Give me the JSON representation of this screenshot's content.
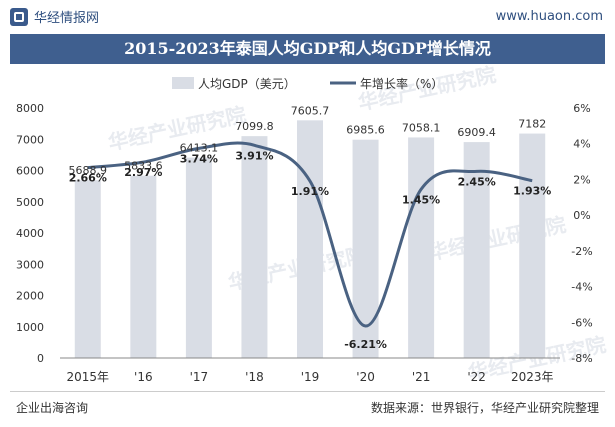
{
  "header": {
    "brand": "华经情报网",
    "url": "www.huaon.com",
    "title": "2015-2023年泰国人均GDP和人均GDP增长情况"
  },
  "footer": {
    "left": "企业出海咨询",
    "right": "数据来源：世界银行，华经产业研究院整理"
  },
  "watermark": "华经产业研究院",
  "colors": {
    "bar": "#d9dde5",
    "line": "#4a6282",
    "title_bg": "#3f5f8f"
  },
  "chart_data": {
    "type": "bar",
    "title": "2015-2023年泰国人均GDP和人均GDP增长情况",
    "categories": [
      "2015年",
      "'16",
      "'17",
      "'18",
      "'19",
      "'20",
      "'21",
      "'22",
      "2023年"
    ],
    "series": [
      {
        "name": "人均GDP（美元）",
        "type": "bar",
        "axis": "left",
        "values": [
          5688.9,
          5833.6,
          6413.1,
          7099.8,
          7605.7,
          6985.6,
          7058.1,
          6909.4,
          7182
        ],
        "labels": [
          "5688.9",
          "5833.6",
          "6413.1",
          "7099.8",
          "7605.7",
          "6985.6",
          "7058.1",
          "6909.4",
          "7182"
        ]
      },
      {
        "name": "年增长率（%）",
        "type": "line",
        "axis": "right",
        "values": [
          2.66,
          2.97,
          3.74,
          3.91,
          1.91,
          -6.21,
          1.45,
          2.45,
          1.93
        ],
        "labels": [
          "2.66%",
          "2.97%",
          "3.74%",
          "3.91%",
          "1.91%",
          "-6.21%",
          "1.45%",
          "2.45%",
          "1.93%"
        ]
      }
    ],
    "y_left": {
      "min": 0,
      "max": 8000,
      "ticks": [
        "0",
        "1000",
        "2000",
        "3000",
        "4000",
        "5000",
        "6000",
        "7000",
        "8000"
      ]
    },
    "y_right": {
      "min": -8,
      "max": 6,
      "ticks": [
        "-8%",
        "-6%",
        "-4%",
        "-2%",
        "0%",
        "2%",
        "4%",
        "6%"
      ]
    },
    "legend_position": "top",
    "grid": false
  }
}
